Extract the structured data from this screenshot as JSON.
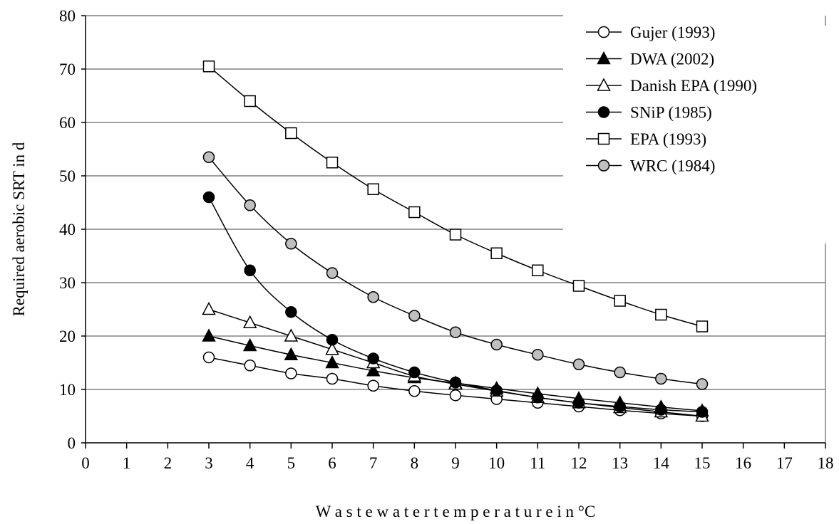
{
  "chart_data": {
    "type": "line",
    "title": "",
    "xlabel": "W a s t e w a t e r   t e m p e r a t u r e   i n   °C",
    "ylabel": "Required aerobic SRT in d",
    "xlim": [
      0,
      18
    ],
    "ylim": [
      0,
      80
    ],
    "x_ticks": [
      "0",
      "1",
      "2",
      "3",
      "4",
      "5",
      "6",
      "7",
      "8",
      "9",
      "10",
      "11",
      "12",
      "13",
      "14",
      "15",
      "16",
      "17",
      "18"
    ],
    "y_ticks": [
      "0",
      "10",
      "20",
      "30",
      "40",
      "50",
      "60",
      "70",
      "80"
    ],
    "grid": "horizontal",
    "legend_position": "top-right",
    "x": [
      3,
      4,
      5,
      6,
      7,
      8,
      9,
      10,
      11,
      12,
      13,
      14,
      15
    ],
    "series": [
      {
        "name": "Gujer (1993)",
        "marker": "circle-open",
        "values": [
          16.0,
          14.5,
          13.0,
          12.0,
          10.7,
          9.7,
          8.9,
          8.2,
          7.5,
          6.8,
          6.1,
          5.5,
          5.0
        ]
      },
      {
        "name": "DWA (2002)",
        "marker": "triangle-filled",
        "values": [
          20.0,
          18.2,
          16.5,
          15.0,
          13.5,
          12.2,
          11.2,
          10.2,
          9.2,
          8.3,
          7.5,
          6.7,
          6.0
        ]
      },
      {
        "name": "Danish EPA (1990)",
        "marker": "triangle-open",
        "values": [
          25.0,
          22.5,
          20.0,
          17.5,
          15.0,
          12.5,
          11.0,
          9.7,
          8.5,
          7.5,
          6.6,
          5.8,
          5.0
        ]
      },
      {
        "name": "SNiP (1985)",
        "marker": "circle-filled",
        "values": [
          46.0,
          32.3,
          24.5,
          19.3,
          15.8,
          13.2,
          11.3,
          9.8,
          8.5,
          7.5,
          6.8,
          6.2,
          5.8
        ]
      },
      {
        "name": "EPA (1993)",
        "marker": "square-open",
        "values": [
          70.5,
          64.0,
          58.0,
          52.5,
          47.5,
          43.2,
          39.0,
          35.5,
          32.3,
          29.4,
          26.6,
          24.0,
          21.8
        ]
      },
      {
        "name": "WRC (1984)",
        "marker": "circle-gray",
        "values": [
          53.5,
          44.5,
          37.3,
          31.8,
          27.3,
          23.8,
          20.7,
          18.4,
          16.5,
          14.7,
          13.2,
          12.0,
          11.0
        ]
      }
    ],
    "colors": {
      "line": "#000000",
      "grid": "#808080",
      "gray_fill": "#bfbfbf",
      "open_fill": "#ffffff"
    }
  }
}
